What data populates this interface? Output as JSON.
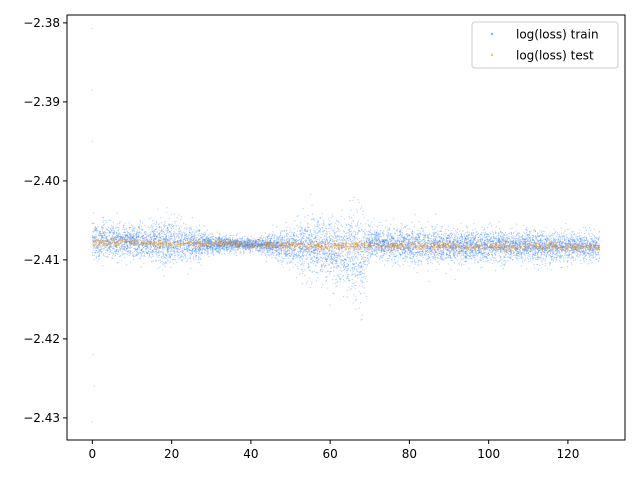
{
  "chart_data": {
    "type": "scatter",
    "title": "",
    "xlabel": "",
    "ylabel": "",
    "xlim": [
      -6.4,
      134.4
    ],
    "ylim": [
      -2.4328,
      -2.379
    ],
    "xticks": [
      0,
      20,
      40,
      60,
      80,
      100,
      120
    ],
    "yticks": [
      -2.38,
      -2.39,
      -2.4,
      -2.41,
      -2.42,
      -2.43
    ],
    "xtick_labels": [
      "0",
      "20",
      "40",
      "60",
      "80",
      "100",
      "120"
    ],
    "ytick_labels": [
      "−2.38",
      "−2.39",
      "−2.40",
      "−2.41",
      "−2.42",
      "−2.43"
    ],
    "grid": false,
    "legend_position": "top-right",
    "series": [
      {
        "name": "log(loss) train",
        "color": "#1f77ff",
        "x_range": [
          0,
          128
        ],
        "center_profile": [
          [
            0,
            -2.4075
          ],
          [
            10,
            -2.4077
          ],
          [
            20,
            -2.4079
          ],
          [
            30,
            -2.408
          ],
          [
            45,
            -2.4081
          ],
          [
            55,
            -2.4083
          ],
          [
            65,
            -2.409
          ],
          [
            68,
            -2.4098
          ],
          [
            70,
            -2.4078
          ],
          [
            80,
            -2.4082
          ],
          [
            100,
            -2.4083
          ],
          [
            128,
            -2.4083
          ]
        ],
        "spread_profile": [
          [
            0,
            0.0025
          ],
          [
            10,
            0.0018
          ],
          [
            20,
            0.003
          ],
          [
            30,
            0.0012
          ],
          [
            40,
            0.0007
          ],
          [
            45,
            0.0012
          ],
          [
            55,
            0.0035
          ],
          [
            65,
            0.0045
          ],
          [
            68,
            0.006
          ],
          [
            70,
            0.0018
          ],
          [
            80,
            0.0022
          ],
          [
            100,
            0.002
          ],
          [
            128,
            0.0017
          ]
        ],
        "outliers": [
          [
            0,
            -2.3807
          ],
          [
            0,
            -2.3885
          ],
          [
            0,
            -2.395
          ],
          [
            0.5,
            -2.426
          ],
          [
            0,
            -2.4305
          ],
          [
            0.2,
            -2.422
          ],
          [
            68,
            -2.4175
          ]
        ]
      },
      {
        "name": "log(loss) test",
        "color": "#d9922e",
        "x_range": [
          0,
          128
        ],
        "center_profile": [
          [
            0,
            -2.4077
          ],
          [
            20,
            -2.4079
          ],
          [
            35,
            -2.4079
          ],
          [
            43,
            -2.4081
          ],
          [
            60,
            -2.4082
          ],
          [
            80,
            -2.4082
          ],
          [
            128,
            -2.4084
          ]
        ],
        "spread_profile": [
          [
            0,
            0.0006
          ],
          [
            35,
            0.0004
          ],
          [
            45,
            0.0006
          ],
          [
            80,
            0.0006
          ],
          [
            128,
            0.0006
          ]
        ],
        "outliers": []
      }
    ]
  }
}
